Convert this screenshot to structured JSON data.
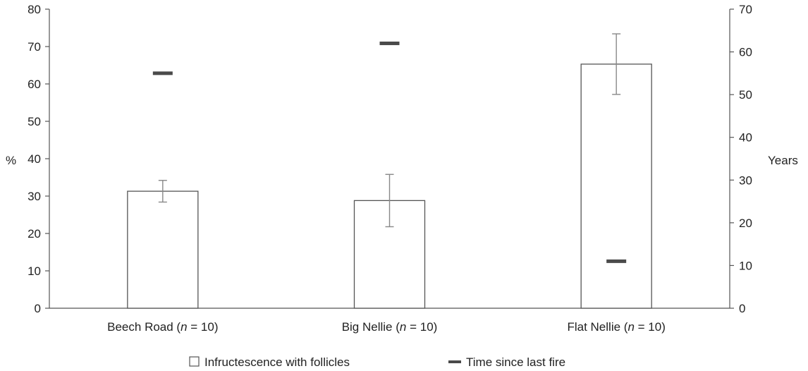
{
  "chart_data": {
    "type": "bar",
    "categories": [
      {
        "name": "Beech Road",
        "n_label": "n",
        "eq": " = 10)"
      },
      {
        "name": "Big Nellie",
        "n_label": "n",
        "eq": " = 10)"
      },
      {
        "name": "Flat Nellie",
        "n_label": "n",
        "eq": " = 10)"
      }
    ],
    "ylabel_left": "%",
    "ylabel_right": "Years",
    "ylim_left": [
      0,
      80
    ],
    "ylim_right": [
      0,
      70
    ],
    "yticks_left": [
      0,
      10,
      20,
      30,
      40,
      50,
      60,
      70,
      80
    ],
    "yticks_right": [
      0,
      10,
      20,
      30,
      40,
      50,
      60,
      70
    ],
    "grid": false,
    "legend_position": "bottom",
    "series": [
      {
        "name": "Infructescence with follicles",
        "type": "bar",
        "axis": "left",
        "values": [
          31.3,
          28.8,
          65.3
        ],
        "error_low": [
          28.4,
          21.8,
          57.2
        ],
        "error_high": [
          34.2,
          35.8,
          73.4
        ],
        "color": "#ffffff",
        "stroke": "#555555"
      },
      {
        "name": "Time since last fire",
        "type": "marker",
        "axis": "right",
        "values": [
          55,
          62,
          11
        ],
        "color": "#4a4a4a"
      }
    ]
  }
}
